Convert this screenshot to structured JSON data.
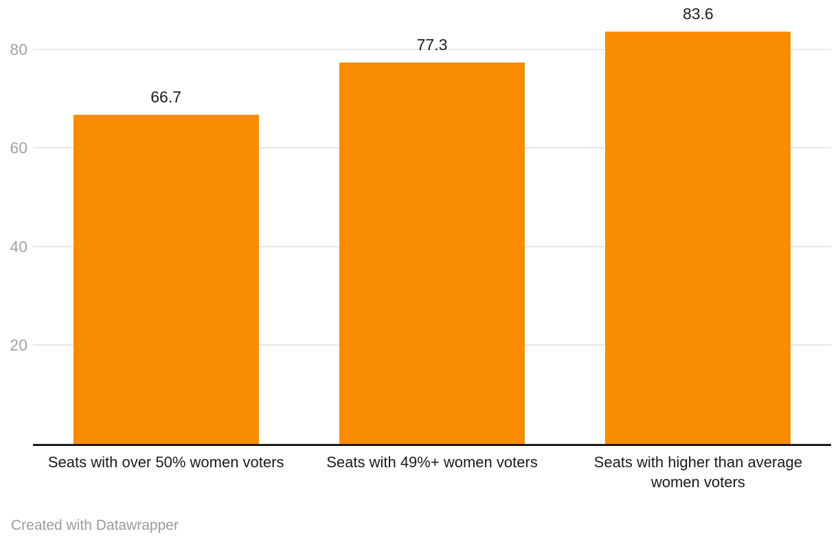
{
  "chart_data": {
    "type": "bar",
    "categories": [
      "Seats with over 50% women voters",
      "Seats with 49%+ women voters",
      "Seats with higher than average women voters"
    ],
    "values": [
      66.7,
      77.3,
      83.6
    ],
    "title": "",
    "xlabel": "",
    "ylabel": "",
    "ylim": [
      0,
      90
    ],
    "y_ticks": [
      20,
      40,
      60,
      80
    ],
    "grid": true,
    "legend": "none",
    "colors": {
      "bar": "#f98c00",
      "axis_line": "#1a1a1a",
      "gridline": "#e6e6e6",
      "tick_label": "#a2a2a2",
      "value_label": "#1a1a1a",
      "category_label": "#1a1a1a",
      "attribution": "#9a9a9a"
    }
  },
  "footer": {
    "attribution": "Created with Datawrapper"
  }
}
